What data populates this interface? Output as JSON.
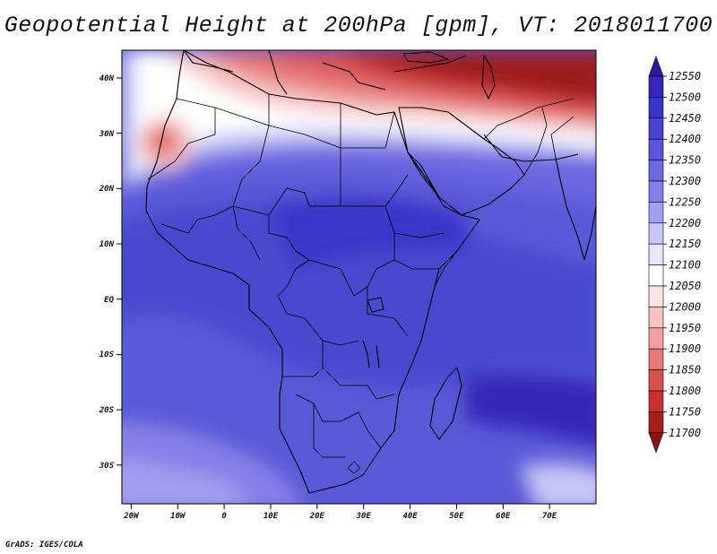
{
  "title": "Geopotential Height at 200hPa [gpm], VT: 2018011700",
  "credit": "GrADS: IGES/COLA",
  "map": {
    "lon_range": [
      -22,
      80
    ],
    "lat_range": [
      -37,
      45
    ],
    "lon_ticks": [
      "20W",
      "10W",
      "0",
      "10E",
      "20E",
      "30E",
      "40E",
      "50E",
      "60E",
      "70E"
    ],
    "lat_ticks": [
      "40N",
      "30N",
      "20N",
      "10N",
      "EQ",
      "10S",
      "20S",
      "30S"
    ],
    "background_color": "#5a5ad8"
  },
  "colorbar": {
    "levels": [
      "12550",
      "12500",
      "12450",
      "12400",
      "12350",
      "12300",
      "12250",
      "12200",
      "12150",
      "12100",
      "12050",
      "12000",
      "11950",
      "11900",
      "11850",
      "11800",
      "11750",
      "11700"
    ],
    "colors": [
      "#2a1c99",
      "#3426b8",
      "#3b34c9",
      "#4a44d3",
      "#5a55da",
      "#6c68e0",
      "#8580e8",
      "#a29ff0",
      "#c6c6f7",
      "#e8e8fb",
      "#ffffff",
      "#fbe3e3",
      "#f6c2c2",
      "#efa0a0",
      "#e67878",
      "#d95050",
      "#c73030",
      "#a51e1e",
      "#8a1414"
    ]
  }
}
